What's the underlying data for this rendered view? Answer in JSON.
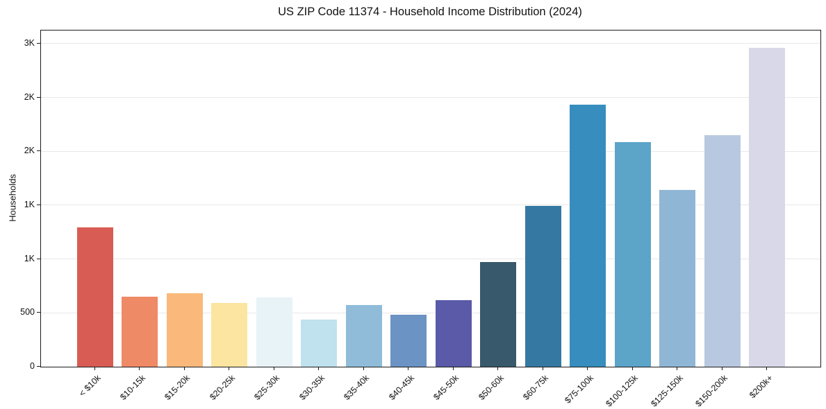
{
  "chart_data": {
    "type": "bar",
    "title": "US ZIP Code 11374 - Household Income Distribution (2024)",
    "xlabel": "",
    "ylabel": "Households",
    "legend": "none",
    "grid": "horizontal",
    "ylim": [
      0,
      3122
    ],
    "categories": [
      "< $10k",
      "$10-15k",
      "$15-20k",
      "$20-25k",
      "$25-30k",
      "$30-35k",
      "$35-40k",
      "$40-45k",
      "$45-50k",
      "$50-60k",
      "$60-75k",
      "$75-100k",
      "$100-125k",
      "$125-150k",
      "$150-200k",
      "$200k+"
    ],
    "values": [
      1295,
      650,
      685,
      590,
      645,
      435,
      570,
      480,
      615,
      975,
      1495,
      2435,
      2085,
      1640,
      2150,
      2960
    ],
    "bar_colors": [
      "#d85c53",
      "#ef8a66",
      "#fab97a",
      "#fbe5a0",
      "#e7f3f7",
      "#c0e1ee",
      "#90bcda",
      "#6b93c3",
      "#5a5aa8",
      "#38596b",
      "#3579a2",
      "#368dbe",
      "#5ca4c8",
      "#90b6d6",
      "#b8c8e0",
      "#d8d8e8"
    ],
    "yticks": [
      {
        "value": 0,
        "label": "0"
      },
      {
        "value": 500,
        "label": "500"
      },
      {
        "value": 1000,
        "label": "1K"
      },
      {
        "value": 1500,
        "label": "1K"
      },
      {
        "value": 2000,
        "label": "2K"
      },
      {
        "value": 2500,
        "label": "2K"
      },
      {
        "value": 3000,
        "label": "3K"
      }
    ]
  },
  "colors": {
    "gridline": "#e8e8e8",
    "axis": "#1a1a1a",
    "text": "#111111",
    "background": "#ffffff"
  }
}
